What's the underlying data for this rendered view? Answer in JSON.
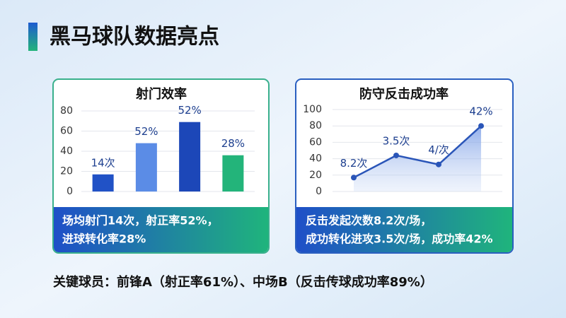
{
  "title": "黑马球队数据亮点",
  "chart_data": [
    {
      "type": "bar",
      "title": "射门效率",
      "categories": [
        null,
        null,
        null,
        null
      ],
      "values": [
        17,
        48,
        69,
        36
      ],
      "colors": [
        "#2152c6",
        "#5b8ce6",
        "#1c47b8",
        "#23b47a"
      ],
      "annotations": [
        "14次",
        "52%",
        "52%",
        "28%"
      ],
      "ylim": [
        0,
        80
      ],
      "yticks": [
        0,
        20,
        40,
        60,
        80
      ],
      "grid": true
    },
    {
      "type": "area",
      "title": "防守反击成功率",
      "categories": [
        null,
        null,
        null,
        null
      ],
      "values": [
        17,
        44,
        33,
        80
      ],
      "color": "#2a55b8",
      "annotations": [
        "8.2次",
        "3.5次",
        "4/次",
        "42%"
      ],
      "ylim": [
        0,
        100
      ],
      "yticks": [
        0,
        20,
        40,
        60,
        80,
        100
      ],
      "grid": true
    }
  ],
  "captions": [
    [
      "场均射门14次，射正率52%，",
      "进球转化率28%"
    ],
    [
      "反击发起次数8.2次/场，",
      "成功转化进攻3.5次/场，成功率42%"
    ]
  ],
  "footer": "关键球员：前锋A（射正率61%）、中场B（反击传球成功率89%）"
}
